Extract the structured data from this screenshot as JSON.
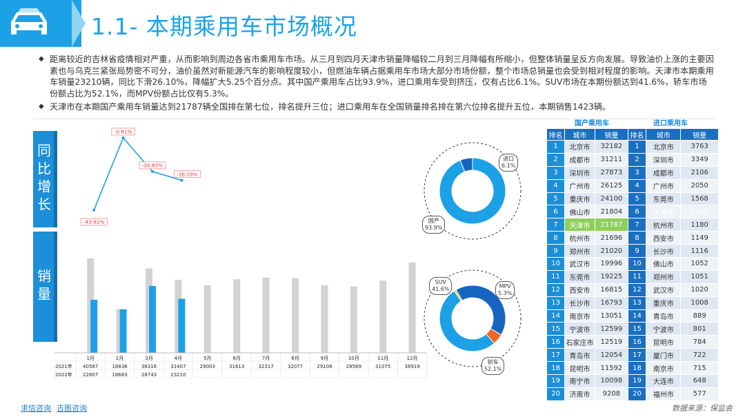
{
  "header": {
    "title": "1.1- 本期乘用车市场概况",
    "icon": "car-icon",
    "accent": "#1da1e6"
  },
  "bullets": [
    "距离较近的吉林省疫情相对严重，从而影响到周边各省市乘用车市场。从三月到四月天津市销量降幅较二月到三月降幅有所缩小，但整体销量呈反方向发展。导致油价上涨的主要因素也与乌克兰紧张局势密不可分，油价虽然对新能源汽车的影响程度较小，但燃油车辆占据乘用车市场大部分市场份额，整个市场总销量也会受到相对程度的影响。天津市本期乘用车销量23210辆，同比下滑26.10%，降幅扩大5.25个百分点。其中国产乘用车占比93.9%，进口乘用车受到挤压，仅有占比6.1%。SUV市场在本期份额达到41.6%，轿车市场份额占比为52.1%，而MPV份额占比仅有5.3%。",
    "天津市在本期国产乘用车销量达到21787辆全国排在第七位，排名提升三位；进口乘用车在全国销量排名排在第六位排名提升五位，本期销售1423辆。"
  ],
  "side_labels": {
    "yoy": "同比增长",
    "sales": "销量"
  },
  "chart_data": {
    "type": "bar",
    "categories": [
      "1月",
      "2月",
      "3月",
      "4月",
      "5月",
      "6月",
      "7月",
      "8月",
      "9月",
      "10月",
      "11月",
      "12月"
    ],
    "series": [
      {
        "name": "2021年",
        "values": [
          40587,
          18836,
          36316,
          31407,
          29003,
          31613,
          32317,
          32077,
          29106,
          28569,
          31075,
          38919
        ],
        "color": "#d3d3d3"
      },
      {
        "name": "2022年",
        "values": [
          22807,
          18683,
          28743,
          23210,
          null,
          null,
          null,
          null,
          null,
          null,
          null,
          null
        ],
        "color": "#1da1e6"
      }
    ],
    "yoy_line": {
      "name": "同比增长",
      "values": [
        -43.81,
        -0.81,
        -20.85,
        -26.1
      ],
      "labels": [
        "-43.81%",
        "-0.81%",
        "-20.85%",
        "-26.10%"
      ],
      "color": "#1da1e6"
    },
    "ylim": [
      0,
      45000
    ],
    "row_labels": [
      "2021年",
      "2022年"
    ],
    "table_2021": [
      "40587",
      "18836",
      "36316",
      "31407",
      "29003",
      "31613",
      "32317",
      "32077",
      "29106",
      "28569",
      "31075",
      "38919"
    ],
    "table_2022": [
      "22807",
      "18683",
      "28743",
      "23210",
      "",
      "",
      "",
      "",
      "",
      "",
      "",
      ""
    ]
  },
  "donut_origin": {
    "segments": [
      {
        "name": "国产",
        "pct": 93.9,
        "label": "93.9%",
        "color": "#1da1e6"
      },
      {
        "name": "进口",
        "pct": 6.1,
        "label": "6.1%",
        "color": "#1565c0"
      }
    ]
  },
  "donut_type": {
    "segments": [
      {
        "name": "SUV",
        "pct": 41.6,
        "label": "41.6%",
        "color": "#1565c0"
      },
      {
        "name": "MPV",
        "pct": 5.3,
        "label": "5.3%",
        "color": "#f26522"
      },
      {
        "name": "轿车",
        "pct": 52.1,
        "label": "52.1%",
        "color": "#1da1e6"
      },
      {
        "name": "其他",
        "pct": 1.0,
        "label": "",
        "color": "#f5c518"
      }
    ]
  },
  "ranking": {
    "domestic_title": "国产乘用车",
    "import_title": "进口乘用车",
    "headers": [
      "排名",
      "城市",
      "销量",
      "排名",
      "城市",
      "销量"
    ],
    "rows": [
      [
        "1",
        "北京市",
        "32182",
        "1",
        "北京市",
        "3763"
      ],
      [
        "2",
        "成都市",
        "31211",
        "2",
        "深圳市",
        "3349"
      ],
      [
        "3",
        "深圳市",
        "27873",
        "3",
        "成都市",
        "2106"
      ],
      [
        "4",
        "广州市",
        "26125",
        "4",
        "广州市",
        "2050"
      ],
      [
        "5",
        "重庆市",
        "24100",
        "5",
        "东莞市",
        "1568"
      ],
      [
        "6",
        "佛山市",
        "21804",
        "6",
        "天津市",
        "1423"
      ],
      [
        "7",
        "天津市",
        "21787",
        "7",
        "杭州市",
        "1180"
      ],
      [
        "8",
        "杭州市",
        "21696",
        "8",
        "西安市",
        "1149"
      ],
      [
        "9",
        "郑州市",
        "21020",
        "9",
        "长沙市",
        "1116"
      ],
      [
        "10",
        "武汉市",
        "19996",
        "10",
        "佛山市",
        "1052"
      ],
      [
        "11",
        "东莞市",
        "19225",
        "11",
        "郑州市",
        "1051"
      ],
      [
        "12",
        "西安市",
        "16815",
        "12",
        "武汉市",
        "1020"
      ],
      [
        "13",
        "长沙市",
        "16793",
        "13",
        "重庆市",
        "1008"
      ],
      [
        "14",
        "南京市",
        "13051",
        "14",
        "青岛市",
        "889"
      ],
      [
        "15",
        "宁波市",
        "12599",
        "15",
        "宁波市",
        "801"
      ],
      [
        "16",
        "石家庄市",
        "12519",
        "16",
        "昆明市",
        "784"
      ],
      [
        "17",
        "青岛市",
        "12054",
        "17",
        "厦门市",
        "722"
      ],
      [
        "18",
        "昆明市",
        "11592",
        "18",
        "南京市",
        "715"
      ],
      [
        "19",
        "南宁市",
        "10098",
        "19",
        "大连市",
        "648"
      ],
      [
        "20",
        "济南市",
        "9208",
        "20",
        "福州市",
        "577"
      ]
    ],
    "highlight_domestic": "#8cd05a",
    "highlight_import": "#1fb34a"
  },
  "footer": {
    "link1": "求信咨询",
    "link2": "吉图咨询",
    "source": "数据来源：保监会"
  }
}
